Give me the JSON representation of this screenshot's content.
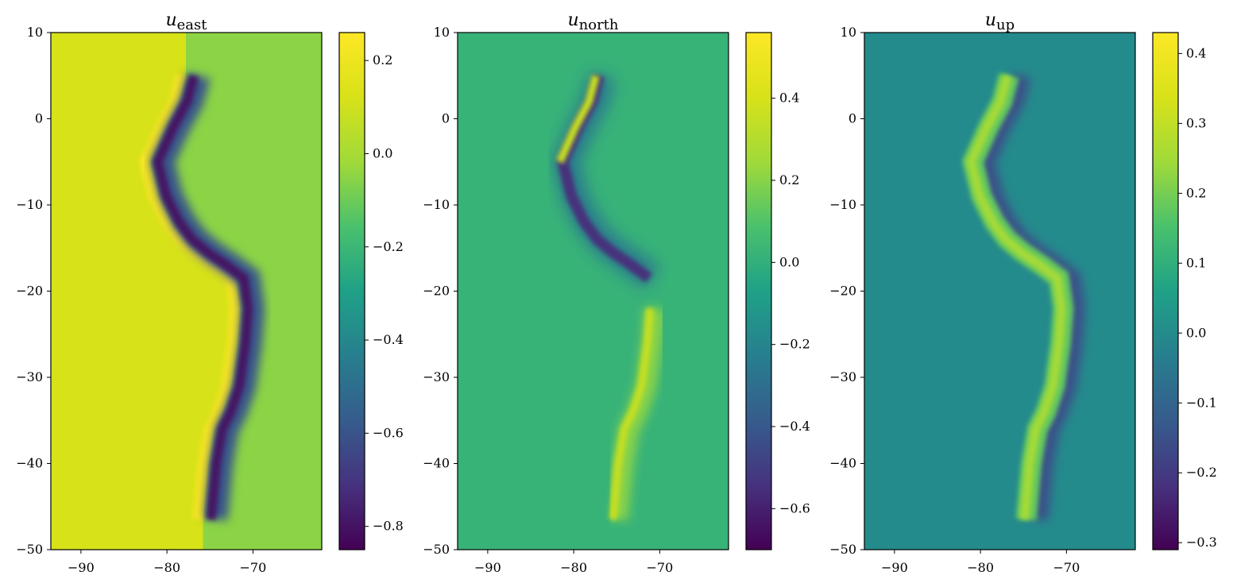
{
  "chart_data": [
    {
      "type": "heatmap",
      "title": "u",
      "title_subscript": "east",
      "xlim": [
        -93.5,
        -62
      ],
      "ylim": [
        -50,
        10
      ],
      "xticks": [
        -90,
        -80,
        -70
      ],
      "yticks": [
        10,
        0,
        -10,
        -20,
        -30,
        -40,
        -50
      ],
      "xtick_labels": [
        "−90",
        "−80",
        "−70"
      ],
      "ytick_labels": [
        "10",
        "0",
        "−10",
        "−20",
        "−30",
        "−40",
        "−50"
      ],
      "colormap": "viridis",
      "clim": [
        -0.85,
        0.26
      ],
      "colorbar_ticks": [
        0.2,
        0.0,
        -0.2,
        -0.4,
        -0.6,
        -0.8
      ],
      "colorbar_tick_labels": [
        "0.2",
        "0.0",
        "−0.2",
        "−0.4",
        "−0.6",
        "−0.8"
      ],
      "fault_trace": {
        "x": [
          -77.8,
          -78.6,
          -80.2,
          -82.0,
          -81.0,
          -79.5,
          -78.0,
          -76.2,
          -74.0,
          -72.0,
          -71.5,
          -71.8,
          -72.5,
          -73.5,
          -74.5,
          -75.2,
          -75.8
        ],
        "y": [
          5,
          2,
          -1,
          -5,
          -9,
          -12,
          -14,
          -15.5,
          -17,
          -18.5,
          -22,
          -26,
          -31,
          -34,
          -36,
          -40,
          -46.5
        ]
      },
      "value_west_of_trace": 0.12,
      "value_east_of_trace": -0.6,
      "value_background": -0.05
    },
    {
      "type": "heatmap",
      "title": "u",
      "title_subscript": "north",
      "xlim": [
        -93.5,
        -62
      ],
      "ylim": [
        -50,
        10
      ],
      "xticks": [
        -90,
        -80,
        -70
      ],
      "yticks": [
        10,
        0,
        -10,
        -20,
        -30,
        -40,
        -50
      ],
      "xtick_labels": [
        "−90",
        "−80",
        "−70"
      ],
      "ytick_labels": [
        "10",
        "0",
        "−10",
        "−20",
        "−30",
        "−40",
        "−50"
      ],
      "colormap": "viridis",
      "clim": [
        -0.7,
        0.56
      ],
      "colorbar_ticks": [
        0.4,
        0.2,
        0.0,
        -0.2,
        -0.4,
        -0.6
      ],
      "colorbar_tick_labels": [
        "0.4",
        "0.2",
        "0.0",
        "−0.2",
        "−0.4",
        "−0.6"
      ],
      "fault_trace": {
        "x": [
          -77.8,
          -78.6,
          -80.2,
          -82.0,
          -81.0,
          -79.5,
          -78.0,
          -76.2,
          -74.0,
          -72.0,
          -71.5,
          -71.8,
          -72.5,
          -73.5,
          -74.5,
          -75.2,
          -75.8
        ],
        "y": [
          5,
          2,
          -1,
          -5,
          -9,
          -12,
          -14,
          -15.5,
          -17,
          -18.5,
          -22,
          -26,
          -31,
          -34,
          -36,
          -40,
          -46.5
        ]
      },
      "value_north_segment": -0.55,
      "value_south_segment": 0.35,
      "value_background": 0.02
    },
    {
      "type": "heatmap",
      "title": "u",
      "title_subscript": "up",
      "xlim": [
        -93.5,
        -62
      ],
      "ylim": [
        -50,
        10
      ],
      "xticks": [
        -90,
        -80,
        -70
      ],
      "yticks": [
        10,
        0,
        -10,
        -20,
        -30,
        -40,
        -50
      ],
      "xtick_labels": [
        "−90",
        "−80",
        "−70"
      ],
      "ytick_labels": [
        "10",
        "0",
        "−10",
        "−20",
        "−30",
        "−40",
        "−50"
      ],
      "colormap": "viridis",
      "clim": [
        -0.31,
        0.43
      ],
      "colorbar_ticks": [
        0.4,
        0.3,
        0.2,
        0.1,
        0.0,
        -0.1,
        -0.2,
        -0.3
      ],
      "colorbar_tick_labels": [
        "0.4",
        "0.3",
        "0.2",
        "0.1",
        "0.0",
        "−0.1",
        "−0.2",
        "−0.3"
      ],
      "fault_trace": {
        "x": [
          -77.8,
          -78.6,
          -80.2,
          -82.0,
          -81.0,
          -79.5,
          -78.0,
          -76.2,
          -74.0,
          -72.0,
          -71.5,
          -71.8,
          -72.5,
          -73.5,
          -74.5,
          -75.2,
          -75.8
        ],
        "y": [
          5,
          2,
          -1,
          -5,
          -9,
          -12,
          -14,
          -15.5,
          -17,
          -18.5,
          -22,
          -26,
          -31,
          -34,
          -36,
          -40,
          -46.5
        ]
      },
      "value_uplift_band": 0.25,
      "value_subsidence_band": -0.15,
      "value_background": 0.0
    }
  ]
}
